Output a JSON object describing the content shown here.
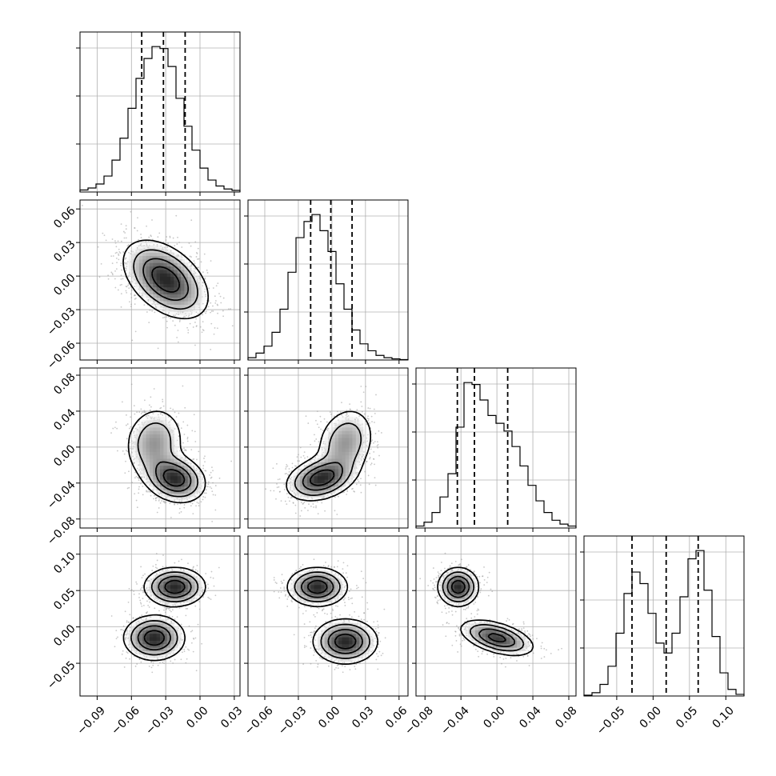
{
  "chart_data": {
    "type": "corner",
    "params": [
      {
        "range": [
          -0.105,
          0.035
        ],
        "ticks": [
          -0.09,
          -0.06,
          -0.03,
          0.0,
          0.03
        ],
        "tick_labels": [
          "−0.09",
          "−0.06",
          "−0.03",
          "0.00",
          "0.03"
        ],
        "quantiles": [
          -0.051,
          -0.032,
          -0.013
        ],
        "hist": [
          1,
          2,
          4,
          8,
          16,
          27,
          42,
          57,
          67,
          73,
          72,
          63,
          47,
          33,
          21,
          12,
          6,
          3,
          1.5,
          0.8
        ]
      },
      {
        "range": [
          -0.075,
          0.068
        ],
        "ticks": [
          -0.06,
          -0.03,
          0.0,
          0.03,
          0.06
        ],
        "tick_labels": [
          "−0.06",
          "−0.03",
          "0.00",
          "0.03",
          "0.06"
        ],
        "quantiles": [
          -0.019,
          -0.001,
          0.018
        ],
        "hist": [
          1,
          3,
          6,
          12,
          22,
          38,
          53,
          60,
          63,
          56,
          47,
          33,
          22,
          13,
          7,
          4,
          2,
          1,
          0.5,
          0.2
        ]
      },
      {
        "range": [
          -0.09,
          0.088
        ],
        "ticks": [
          -0.08,
          -0.04,
          0.0,
          0.04,
          0.08
        ],
        "tick_labels": [
          "−0.08",
          "−0.04",
          "0.00",
          "0.04",
          "0.08"
        ],
        "quantiles": [
          -0.044,
          -0.025,
          0.012
        ],
        "hist": [
          1,
          3,
          8,
          16,
          28,
          52,
          75,
          74,
          66,
          58,
          54,
          50,
          42,
          32,
          22,
          14,
          8,
          4,
          2,
          1
        ]
      },
      {
        "range": [
          -0.095,
          0.125
        ],
        "ticks": [
          -0.05,
          0.0,
          0.05,
          0.1
        ],
        "tick_labels": [
          "−0.05",
          "0.00",
          "0.05",
          "0.10"
        ],
        "quantiles": [
          -0.029,
          0.018,
          0.062
        ],
        "hist": [
          0.5,
          2,
          7,
          18,
          38,
          62,
          75,
          68,
          50,
          32,
          26,
          38,
          60,
          83,
          88,
          64,
          36,
          14,
          4,
          1
        ]
      }
    ],
    "pairs": [
      {
        "row": 1,
        "col": 0,
        "peaks": [
          {
            "x": -0.03,
            "y": -0.003,
            "sx": 0.018,
            "sy": 0.017,
            "rho": -0.45,
            "w": 1
          }
        ]
      },
      {
        "row": 2,
        "col": 0,
        "peaks": [
          {
            "x": -0.04,
            "y": 0.005,
            "sx": 0.013,
            "sy": 0.02,
            "rho": 0.1,
            "w": 0.55
          },
          {
            "x": -0.022,
            "y": -0.035,
            "sx": 0.013,
            "sy": 0.013,
            "rho": -0.2,
            "w": 1
          }
        ]
      },
      {
        "row": 2,
        "col": 1,
        "peaks": [
          {
            "x": -0.01,
            "y": -0.035,
            "sx": 0.015,
            "sy": 0.012,
            "rho": 0.3,
            "w": 1
          },
          {
            "x": 0.012,
            "y": 0.005,
            "sx": 0.013,
            "sy": 0.02,
            "rho": 0.2,
            "w": 0.55
          }
        ]
      },
      {
        "row": 3,
        "col": 0,
        "peaks": [
          {
            "x": -0.022,
            "y": 0.055,
            "sx": 0.013,
            "sy": 0.013,
            "rho": 0,
            "w": 1
          },
          {
            "x": -0.04,
            "y": -0.015,
            "sx": 0.013,
            "sy": 0.015,
            "rho": 0,
            "w": 1
          }
        ]
      },
      {
        "row": 3,
        "col": 1,
        "peaks": [
          {
            "x": -0.013,
            "y": 0.055,
            "sx": 0.013,
            "sy": 0.013,
            "rho": 0,
            "w": 1
          },
          {
            "x": 0.012,
            "y": -0.02,
            "sx": 0.014,
            "sy": 0.015,
            "rho": 0,
            "w": 1
          }
        ]
      },
      {
        "row": 3,
        "col": 2,
        "peaks": [
          {
            "x": -0.043,
            "y": 0.055,
            "sx": 0.011,
            "sy": 0.013,
            "rho": 0,
            "w": 1
          },
          {
            "x": 0.0,
            "y": -0.015,
            "sx": 0.02,
            "sy": 0.012,
            "rho": -0.5,
            "w": 0.9
          }
        ]
      }
    ],
    "contour_levels": [
      0.8,
      0.55,
      0.3,
      0.12
    ],
    "grid": true
  }
}
